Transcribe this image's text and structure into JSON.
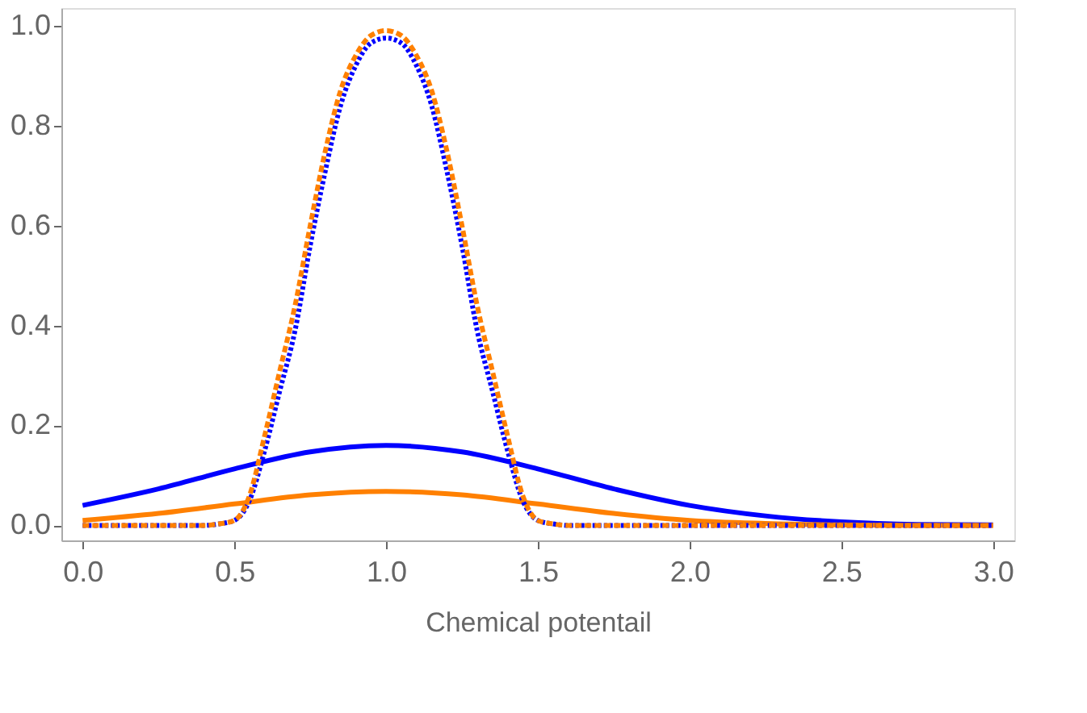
{
  "chart_data": {
    "type": "line",
    "xlabel": "Chemical potentail",
    "xlim": [
      -0.07,
      3.07
    ],
    "ylim": [
      -0.03,
      1.035
    ],
    "xticks": [
      {
        "value": 0,
        "label": "0.0"
      },
      0.5,
      {
        "value": 1,
        "label": "1.0"
      },
      1.5,
      {
        "value": 2,
        "label": "2.0"
      },
      2.5,
      {
        "value": 3,
        "label": "3.0"
      }
    ],
    "yticks": [
      {
        "value": 0,
        "label": "0.0"
      },
      0.2,
      0.4,
      0.6,
      0.8,
      {
        "value": 1,
        "label": "1.0"
      }
    ],
    "grid": false,
    "series": [
      {
        "color": "#0000ff",
        "line_style": "solid",
        "x": [
          0,
          0.25,
          0.5,
          0.75,
          1,
          1.25,
          1.5,
          1.75,
          2,
          2.25,
          2.5,
          2.75,
          3
        ],
        "values": [
          0.04,
          0.073,
          0.113,
          0.147,
          0.16,
          0.147,
          0.113,
          0.073,
          0.04,
          0.019,
          0.007,
          0.002,
          0.001
        ]
      },
      {
        "color": "#ff8000",
        "line_style": "solid",
        "x": [
          0,
          0.25,
          0.5,
          0.75,
          1,
          1.25,
          1.5,
          1.75,
          2,
          2.25,
          2.5,
          2.75,
          3
        ],
        "values": [
          0.01,
          0.024,
          0.043,
          0.061,
          0.068,
          0.061,
          0.043,
          0.024,
          0.01,
          0.004,
          0.001,
          0.0,
          0.0
        ]
      },
      {
        "color": "#0000ff",
        "line_style": "dotted",
        "x": [
          0,
          0.2,
          0.4,
          0.45,
          0.5,
          0.55,
          0.6,
          0.65,
          0.7,
          0.75,
          0.8,
          0.85,
          0.9,
          0.95,
          1,
          1.05,
          1.1,
          1.15,
          1.2,
          1.25,
          1.3,
          1.35,
          1.4,
          1.45,
          1.5,
          1.55,
          1.6,
          2,
          2.5,
          3
        ],
        "values": [
          0.0,
          0.0,
          0.0,
          0.003,
          0.01,
          0.05,
          0.15,
          0.27,
          0.39,
          0.56,
          0.71,
          0.84,
          0.92,
          0.965,
          0.975,
          0.965,
          0.92,
          0.84,
          0.71,
          0.56,
          0.39,
          0.27,
          0.15,
          0.05,
          0.01,
          0.003,
          0.0,
          0.0,
          0.0,
          0.0
        ]
      },
      {
        "color": "#ff8000",
        "line_style": "dashed",
        "x": [
          0,
          0.2,
          0.4,
          0.45,
          0.5,
          0.55,
          0.6,
          0.65,
          0.7,
          0.75,
          0.8,
          0.85,
          0.9,
          0.95,
          1,
          1.05,
          1.1,
          1.15,
          1.2,
          1.25,
          1.3,
          1.35,
          1.4,
          1.45,
          1.5,
          1.55,
          1.6,
          2,
          2.5,
          3
        ],
        "values": [
          0.0,
          0.0,
          0.0,
          0.003,
          0.01,
          0.06,
          0.18,
          0.31,
          0.44,
          0.6,
          0.75,
          0.87,
          0.94,
          0.98,
          0.99,
          0.98,
          0.94,
          0.87,
          0.75,
          0.6,
          0.44,
          0.31,
          0.18,
          0.06,
          0.01,
          0.003,
          0.0,
          0.0,
          0.0,
          0.0
        ]
      }
    ]
  }
}
